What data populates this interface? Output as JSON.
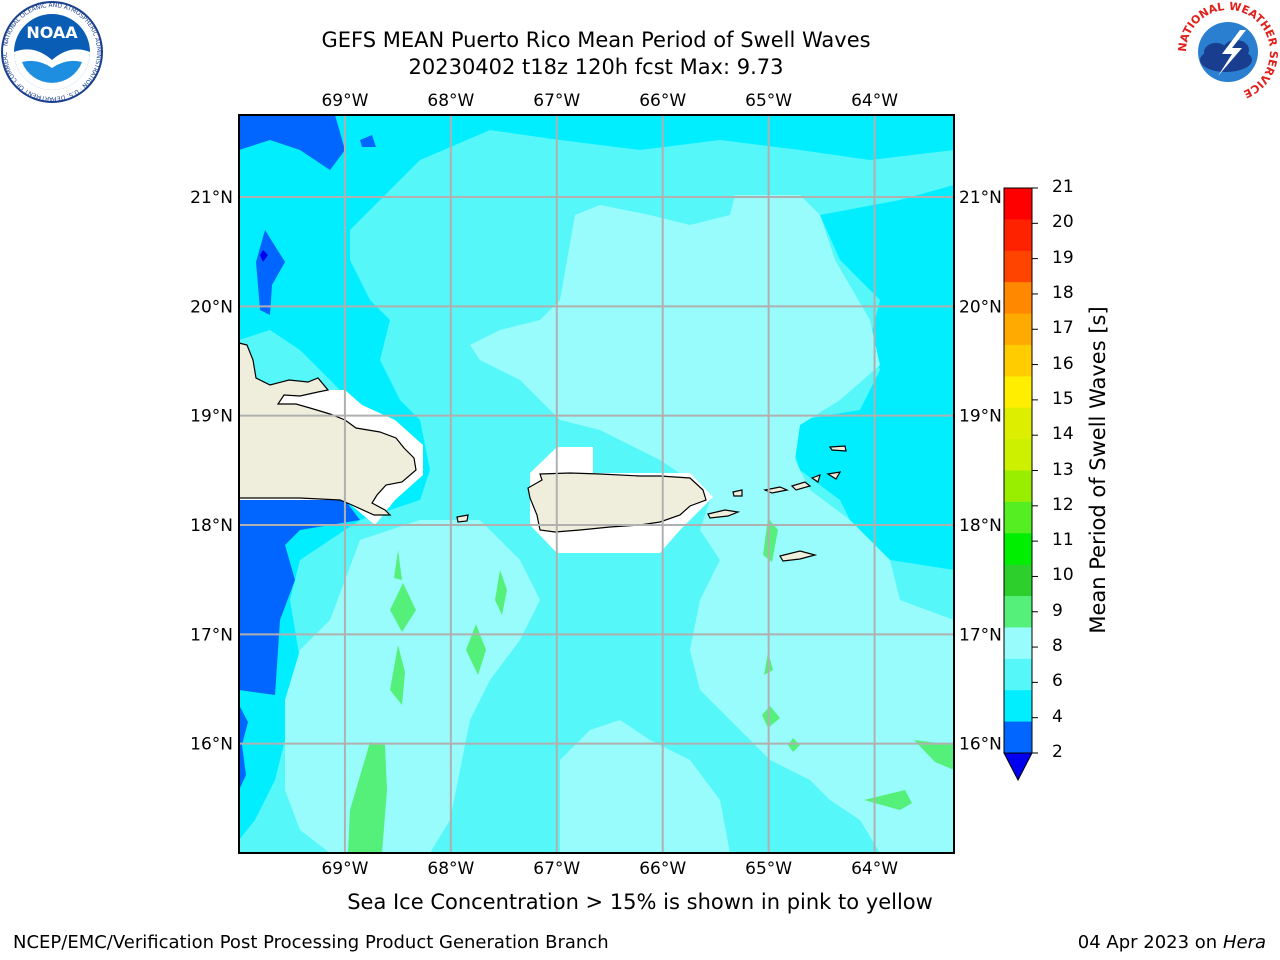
{
  "header": {
    "title_line1": "GEFS MEAN Puerto Rico Mean Period of Swell Waves",
    "title_line2": "20230402 t18z 120h fcst   Max: 9.73"
  },
  "logos": {
    "noaa_text": "NOAA",
    "noaa_ring_text": "NATIONAL OCEANIC AND ATMOSPHERIC ADMINISTRATION · U.S. DEPARTMENT OF COMMERCE",
    "nws_ring_text": "NATIONAL WEATHER SERVICE"
  },
  "map": {
    "lon_ticks": [
      "69°W",
      "68°W",
      "67°W",
      "66°W",
      "65°W",
      "64°W"
    ],
    "lat_ticks": [
      "21°N",
      "20°N",
      "19°N",
      "18°N",
      "17°N",
      "16°N"
    ],
    "lon_values": [
      -69,
      -68,
      -67,
      -66,
      -65,
      -64
    ],
    "lat_values": [
      21,
      20,
      19,
      18,
      17,
      16
    ],
    "lon_range": [
      -70.0,
      -63.25
    ],
    "lat_range": [
      15.0,
      21.75
    ],
    "land_color": "#efeedc",
    "mask_color": "#ffffff"
  },
  "colorbar": {
    "title": "Mean Period of Swell Waves [s]",
    "labels": [
      "2",
      "4",
      "6",
      "8",
      "9",
      "10",
      "11",
      "12",
      "13",
      "14",
      "15",
      "16",
      "17",
      "18",
      "19",
      "20",
      "21"
    ],
    "colors": [
      "#0066ff",
      "#00eeff",
      "#55f7f9",
      "#99fcfc",
      "#55f07a",
      "#2ccf2c",
      "#00ee00",
      "#55ee22",
      "#99ee00",
      "#ccf000",
      "#ddee00",
      "#ffee00",
      "#ffcc00",
      "#ffaa00",
      "#ff8800",
      "#ff4400",
      "#ff2200",
      "#ff0000"
    ],
    "under_color": "#0000ee"
  },
  "caption": "Sea Ice Concentration > 15% is shown in pink to yellow",
  "footer": {
    "left": "NCEP/EMC/Verification Post Processing Product Generation Branch",
    "right_prefix": "04 Apr 2023 on ",
    "right_italic": "Hera"
  }
}
